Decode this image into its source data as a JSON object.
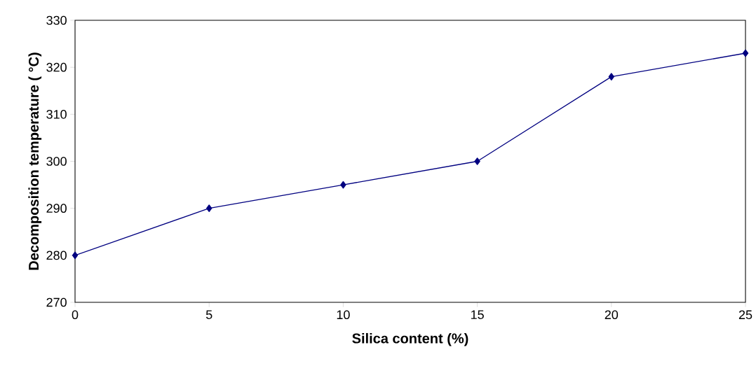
{
  "chart_data": {
    "type": "line",
    "xlabel": "Silica content (%)",
    "ylabel": "Decomposition temperature ( °C)",
    "x": [
      0,
      5,
      10,
      15,
      20,
      25
    ],
    "series": [
      {
        "color": "#000080",
        "values": [
          280,
          290,
          295,
          300,
          318,
          323
        ]
      }
    ],
    "xlim": [
      0,
      25
    ],
    "xticks": [
      0,
      5,
      10,
      15,
      20,
      25
    ],
    "ylim": [
      270,
      330
    ],
    "yticks": [
      270,
      280,
      290,
      300,
      310,
      320,
      330
    ],
    "marker": "diamond",
    "line_style": "solid"
  }
}
